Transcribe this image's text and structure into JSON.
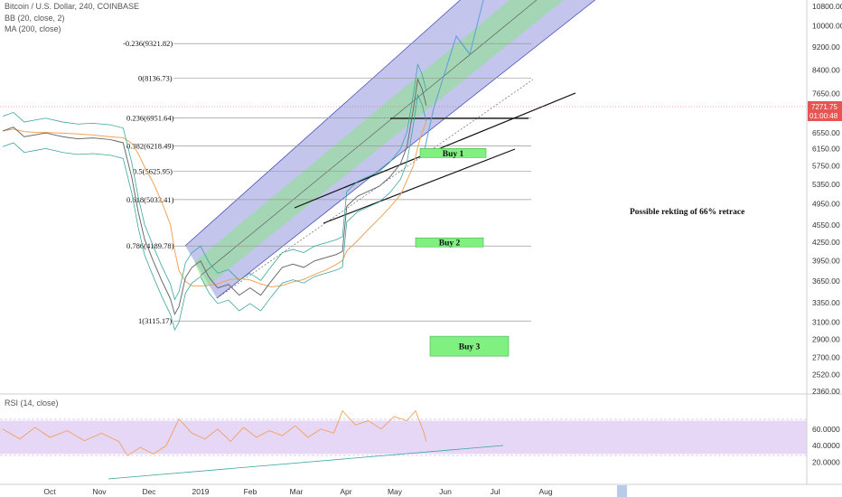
{
  "header": {
    "title": "Bitcoin / U.S. Dollar, 240, COINBASE",
    "indicator_bb": "BB (20, close, 2)",
    "indicator_ma": "MA (200, close)",
    "rsi_label": "RSI (14, close)"
  },
  "colors": {
    "channel_outer": "#7b7fd6",
    "channel_inner": "#8fe08f",
    "rsi_band": "#e6d7f7",
    "price": "#6c6c6c",
    "bb": "#3aa6a0",
    "ma": "#f0a35a",
    "rsi": "#f19a4c",
    "current_price_tag": "#e85454",
    "buy_box": "#80f080",
    "projection": "#5aa0d8"
  },
  "chart_data": {
    "type": "line",
    "title": "",
    "y_ticks": [
      "10800.00",
      "10000.00",
      "9200.00",
      "8400.00",
      "7650.00",
      "6950.00",
      "6550.00",
      "6150.00",
      "5750.00",
      "5350.00",
      "4950.00",
      "4550.00",
      "4250.00",
      "3950.00",
      "3650.00",
      "3350.00",
      "3100.00",
      "2900.00",
      "2700.00",
      "2520.00",
      "2360.00"
    ],
    "x_ticks": [
      "Oct",
      "Nov",
      "Dec",
      "2019",
      "Feb",
      "Mar",
      "Apr",
      "May",
      "Jun",
      "Jul",
      "Aug"
    ],
    "ylim": [
      2360,
      10800
    ],
    "y_scale": "log",
    "current_price": "7271.75",
    "countdown": "01:00:48",
    "fib_levels": [
      {
        "label": "-0.236(9321.82)",
        "value": 9321.82
      },
      {
        "label": "0(8136.73)",
        "value": 8136.73
      },
      {
        "label": "0.236(6951.64)",
        "value": 6951.64
      },
      {
        "label": "0.382(6218.49)",
        "value": 6218.49
      },
      {
        "label": "0.5(5625.95)",
        "value": 5625.95
      },
      {
        "label": "0.618(5033.41)",
        "value": 5033.41
      },
      {
        "label": "0.786(4189.78)",
        "value": 4189.78
      },
      {
        "label": "1(3115.17)",
        "value": 3115.17
      }
    ],
    "buy_zones": [
      {
        "label": "Buy 1",
        "value": 6050
      },
      {
        "label": "Buy 2",
        "value": 4250
      },
      {
        "label": "Buy 3",
        "value": 2820
      }
    ],
    "annotation": "Possible rekting of 66% retrace",
    "price_series": [
      {
        "x": 0,
        "y": 6600
      },
      {
        "x": 5,
        "y": 6700
      },
      {
        "x": 10,
        "y": 6450
      },
      {
        "x": 15,
        "y": 6500
      },
      {
        "x": 20,
        "y": 6550
      },
      {
        "x": 28,
        "y": 6450
      },
      {
        "x": 35,
        "y": 6400
      },
      {
        "x": 42,
        "y": 6420
      },
      {
        "x": 50,
        "y": 6380
      },
      {
        "x": 56,
        "y": 6300
      },
      {
        "x": 60,
        "y": 5500
      },
      {
        "x": 63,
        "y": 4800
      },
      {
        "x": 66,
        "y": 4300
      },
      {
        "x": 70,
        "y": 3950
      },
      {
        "x": 74,
        "y": 3650
      },
      {
        "x": 78,
        "y": 3400
      },
      {
        "x": 80,
        "y": 3200
      },
      {
        "x": 82,
        "y": 3300
      },
      {
        "x": 85,
        "y": 3700
      },
      {
        "x": 88,
        "y": 3850
      },
      {
        "x": 92,
        "y": 3950
      },
      {
        "x": 96,
        "y": 3700
      },
      {
        "x": 100,
        "y": 3550
      },
      {
        "x": 105,
        "y": 3600
      },
      {
        "x": 110,
        "y": 3450
      },
      {
        "x": 115,
        "y": 3550
      },
      {
        "x": 120,
        "y": 3450
      },
      {
        "x": 125,
        "y": 3650
      },
      {
        "x": 130,
        "y": 3850
      },
      {
        "x": 135,
        "y": 3900
      },
      {
        "x": 140,
        "y": 3850
      },
      {
        "x": 145,
        "y": 3950
      },
      {
        "x": 150,
        "y": 4000
      },
      {
        "x": 155,
        "y": 4050
      },
      {
        "x": 158,
        "y": 4100
      },
      {
        "x": 160,
        "y": 4900
      },
      {
        "x": 165,
        "y": 5100
      },
      {
        "x": 170,
        "y": 5200
      },
      {
        "x": 175,
        "y": 5300
      },
      {
        "x": 180,
        "y": 5500
      },
      {
        "x": 185,
        "y": 5800
      },
      {
        "x": 188,
        "y": 6200
      },
      {
        "x": 191,
        "y": 7200
      },
      {
        "x": 193,
        "y": 8100
      },
      {
        "x": 195,
        "y": 7800
      },
      {
        "x": 197,
        "y": 7300
      }
    ],
    "rsi_series": [
      {
        "x": 0,
        "y": 60
      },
      {
        "x": 8,
        "y": 48
      },
      {
        "x": 15,
        "y": 62
      },
      {
        "x": 22,
        "y": 50
      },
      {
        "x": 30,
        "y": 58
      },
      {
        "x": 38,
        "y": 46
      },
      {
        "x": 46,
        "y": 55
      },
      {
        "x": 54,
        "y": 45
      },
      {
        "x": 58,
        "y": 28
      },
      {
        "x": 64,
        "y": 38
      },
      {
        "x": 70,
        "y": 30
      },
      {
        "x": 76,
        "y": 40
      },
      {
        "x": 82,
        "y": 72
      },
      {
        "x": 88,
        "y": 55
      },
      {
        "x": 94,
        "y": 48
      },
      {
        "x": 100,
        "y": 60
      },
      {
        "x": 106,
        "y": 45
      },
      {
        "x": 112,
        "y": 62
      },
      {
        "x": 118,
        "y": 50
      },
      {
        "x": 124,
        "y": 58
      },
      {
        "x": 130,
        "y": 52
      },
      {
        "x": 136,
        "y": 64
      },
      {
        "x": 142,
        "y": 50
      },
      {
        "x": 148,
        "y": 60
      },
      {
        "x": 154,
        "y": 55
      },
      {
        "x": 158,
        "y": 82
      },
      {
        "x": 164,
        "y": 65
      },
      {
        "x": 170,
        "y": 70
      },
      {
        "x": 176,
        "y": 60
      },
      {
        "x": 182,
        "y": 75
      },
      {
        "x": 188,
        "y": 70
      },
      {
        "x": 192,
        "y": 82
      },
      {
        "x": 196,
        "y": 55
      },
      {
        "x": 197,
        "y": 45
      }
    ],
    "rsi_ticks": [
      "60.0000",
      "40.0000",
      "20.0000"
    ],
    "rsi_band": [
      30,
      70
    ]
  }
}
